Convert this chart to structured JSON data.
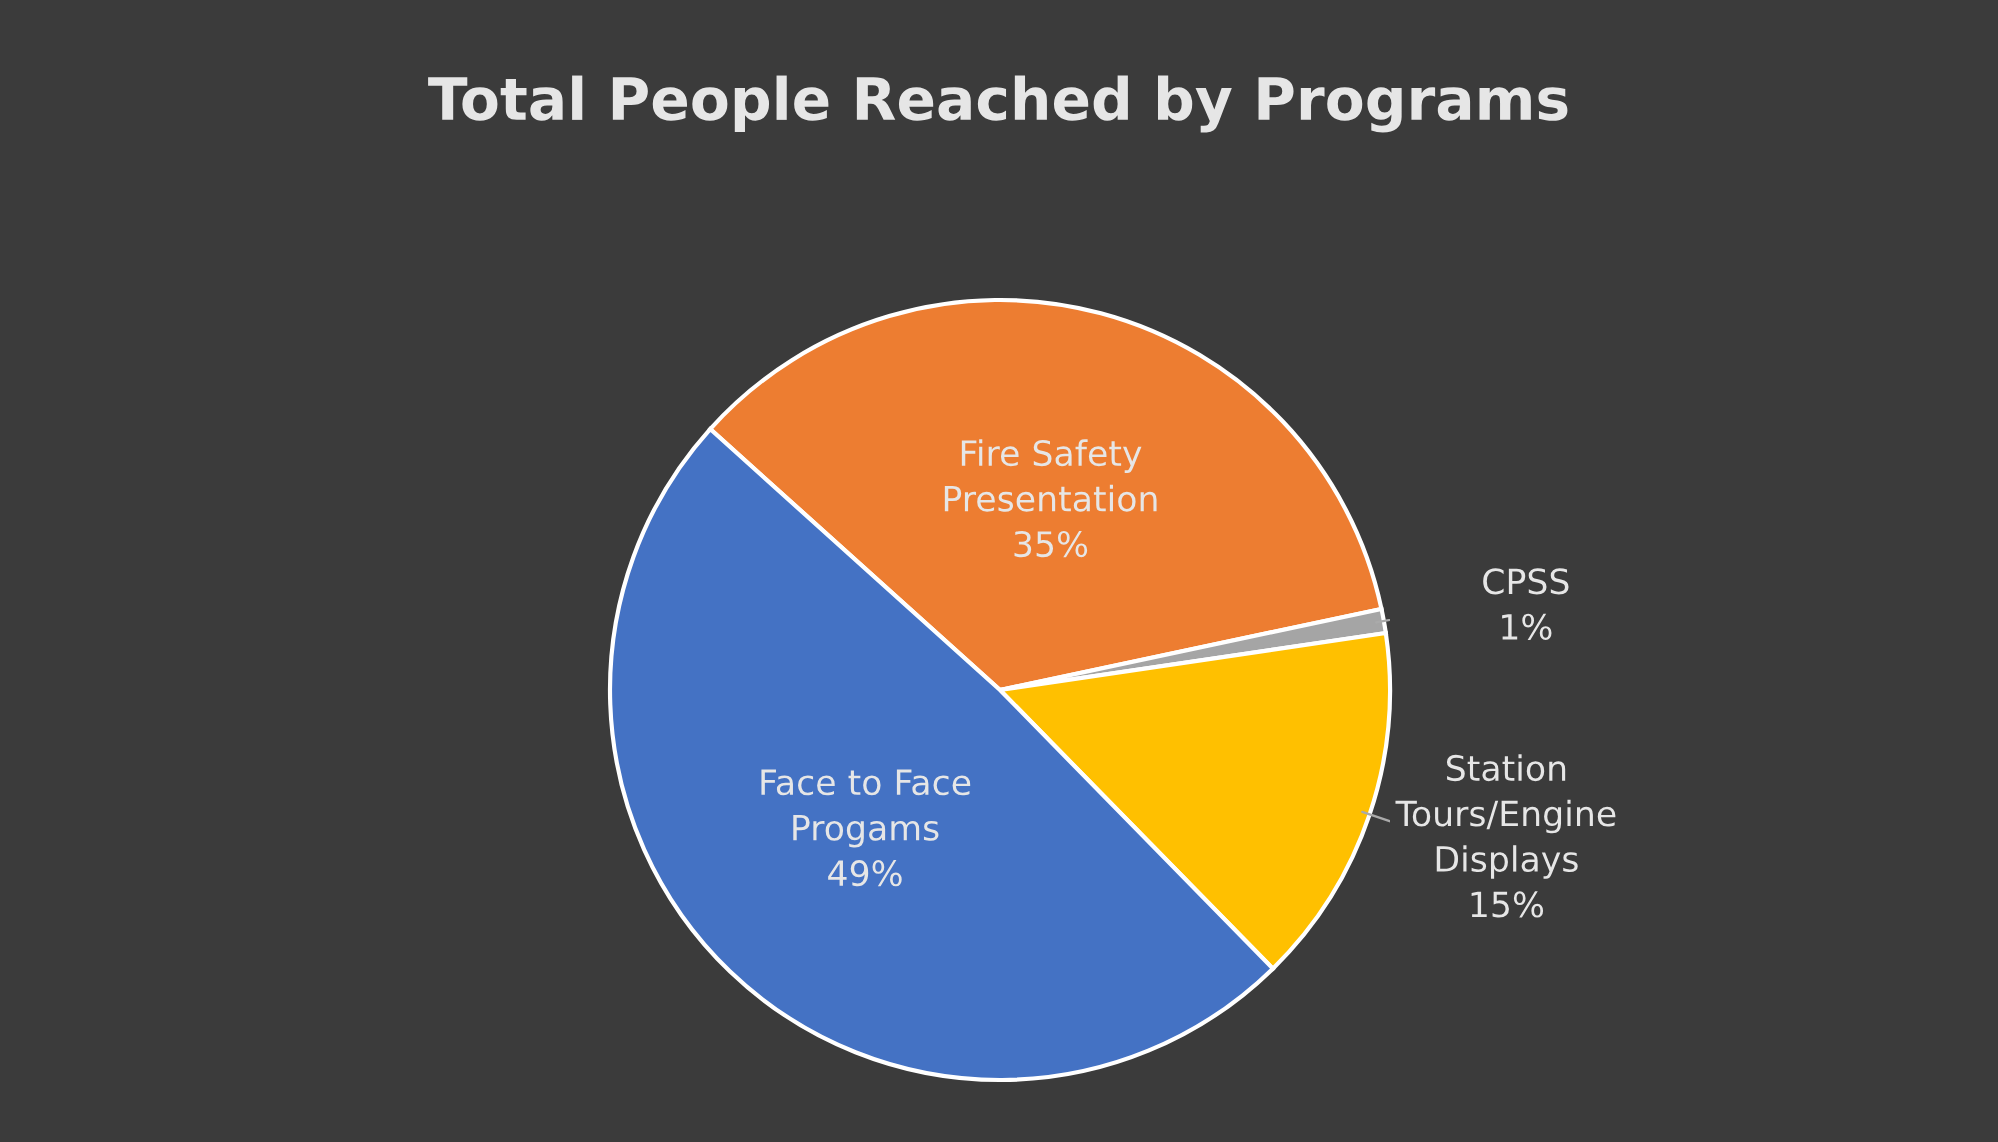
{
  "chart_data": {
    "type": "pie",
    "title": "Total People Reached by Programs",
    "categories": [
      "Fire Safety Presentation",
      "CPSS",
      "Station Tours/Engine Displays",
      "Face to Face Progams"
    ],
    "values": [
      35,
      1,
      15,
      49
    ],
    "value_labels": [
      "35%",
      "1%",
      "15%",
      "49%"
    ],
    "colors": [
      "#ed7d31",
      "#a5a5a5",
      "#ffc000",
      "#4472c4"
    ]
  }
}
